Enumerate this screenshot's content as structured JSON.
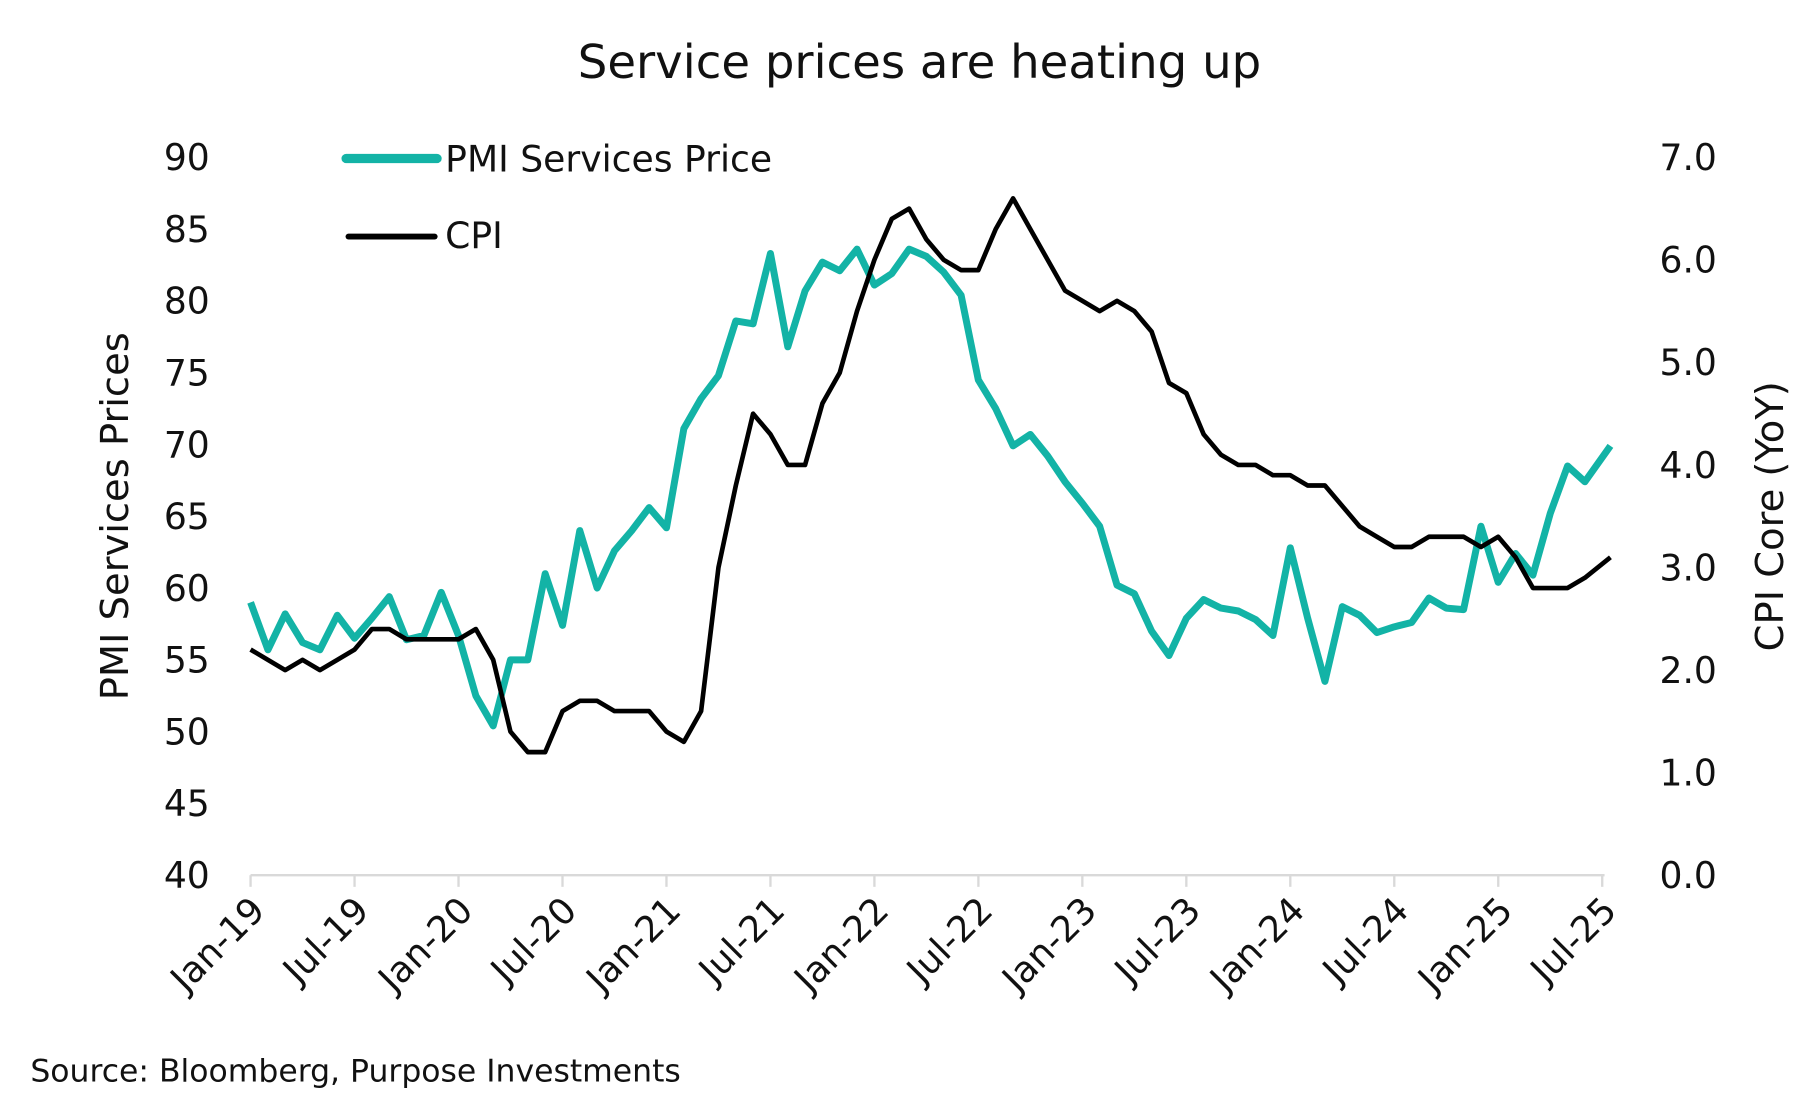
{
  "chart_data": {
    "type": "line",
    "title": "Service prices are heating up",
    "source": "Source: Bloomberg, Purpose Investments",
    "x_start": "Jan-19",
    "x_end": "Jul-25",
    "x_frequency": "monthly",
    "x_tick_labels": [
      "Jan-19",
      "Jul-19",
      "Jan-20",
      "Jul-20",
      "Jan-21",
      "Jul-21",
      "Jan-22",
      "Jul-22",
      "Jan-23",
      "Jul-23",
      "Jan-24",
      "Jul-24",
      "Jan-25",
      "Jul-25"
    ],
    "y_left": {
      "label": "PMI Services Prices",
      "range": [
        40,
        90
      ],
      "ticks": [
        "40",
        "45",
        "50",
        "55",
        "60",
        "65",
        "70",
        "75",
        "80",
        "85",
        "90"
      ]
    },
    "y_right": {
      "label": "CPI Core (YoY)",
      "range": [
        0,
        7
      ],
      "ticks": [
        "0.0",
        "1.0",
        "2.0",
        "3.0",
        "4.0",
        "5.0",
        "6.0",
        "7.0"
      ]
    },
    "grid": false,
    "legend_placement": "top-left",
    "series": [
      {
        "name": "PMI Services Price",
        "axis": "left",
        "color": "#13b3a6",
        "values": [
          59.0,
          55.7,
          58.2,
          56.2,
          55.7,
          58.1,
          56.5,
          57.9,
          59.4,
          56.4,
          56.7,
          59.7,
          56.7,
          52.5,
          50.4,
          55.0,
          55.0,
          61.0,
          57.4,
          64.0,
          60.0,
          62.6,
          64.0,
          65.6,
          64.2,
          71.1,
          73.2,
          74.8,
          78.6,
          78.4,
          83.3,
          76.8,
          80.7,
          82.7,
          82.1,
          83.6,
          81.1,
          81.9,
          83.6,
          83.1,
          82.0,
          80.4,
          74.5,
          72.5,
          69.9,
          70.7,
          69.2,
          67.4,
          65.9,
          64.3,
          60.2,
          59.6,
          57.0,
          55.3,
          57.9,
          59.2,
          58.6,
          58.4,
          57.8,
          56.7,
          62.8,
          57.9,
          53.5,
          58.7,
          58.1,
          56.9,
          57.3,
          57.6,
          59.3,
          58.6,
          58.5,
          64.3,
          60.4,
          62.4,
          60.9,
          65.2,
          68.5,
          67.4,
          69.9
        ]
      },
      {
        "name": "CPI",
        "axis": "right",
        "color": "#000000",
        "values": [
          2.2,
          2.1,
          2.0,
          2.1,
          2.0,
          2.1,
          2.2,
          2.4,
          2.4,
          2.3,
          2.3,
          2.3,
          2.3,
          2.4,
          2.1,
          1.4,
          1.2,
          1.2,
          1.6,
          1.7,
          1.7,
          1.6,
          1.6,
          1.6,
          1.4,
          1.3,
          1.6,
          3.0,
          3.8,
          4.5,
          4.3,
          4.0,
          4.0,
          4.6,
          4.9,
          5.5,
          6.0,
          6.4,
          6.5,
          6.2,
          6.0,
          5.9,
          5.9,
          6.3,
          6.6,
          6.3,
          6.0,
          5.7,
          5.6,
          5.5,
          5.6,
          5.5,
          5.3,
          4.8,
          4.7,
          4.3,
          4.1,
          4.0,
          4.0,
          3.9,
          3.9,
          3.8,
          3.8,
          3.6,
          3.4,
          3.3,
          3.2,
          3.2,
          3.3,
          3.3,
          3.3,
          3.2,
          3.3,
          3.1,
          2.8,
          2.8,
          2.8,
          2.9,
          3.1
        ]
      }
    ]
  }
}
